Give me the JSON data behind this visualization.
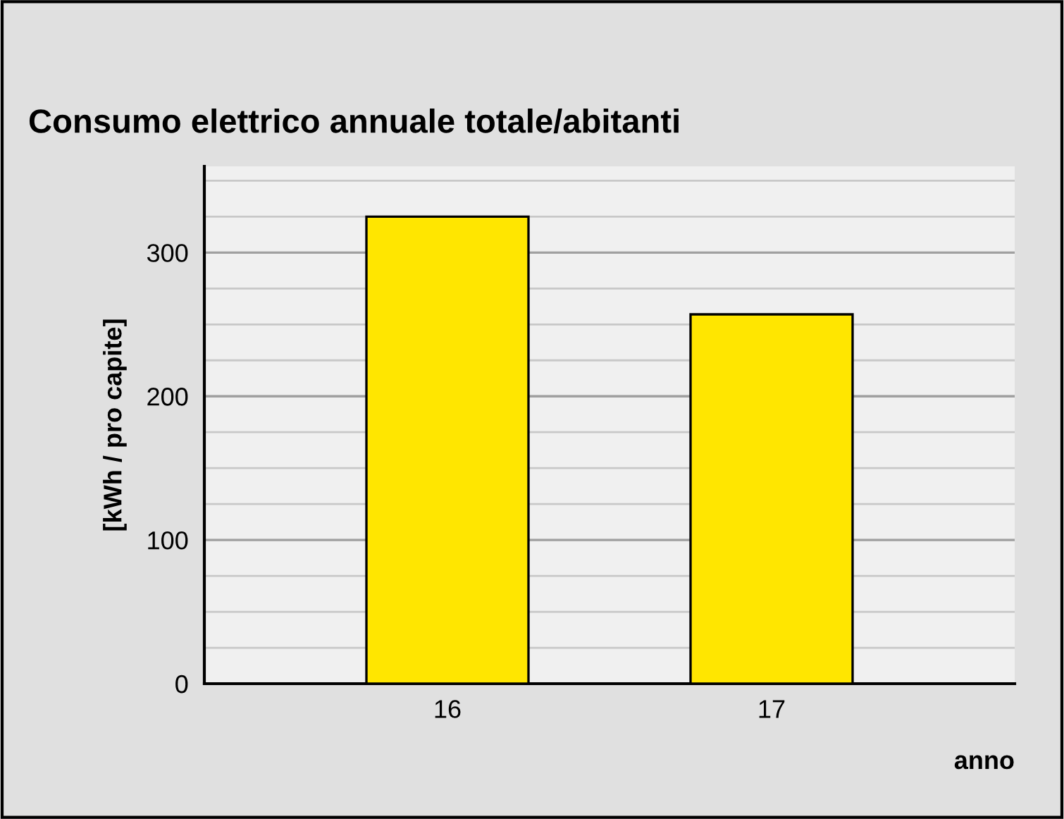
{
  "chart_data": {
    "type": "bar",
    "title": "Consumo elettrico annuale totale/abitanti",
    "xlabel": "anno",
    "ylabel": "[kWh / pro capite]",
    "categories": [
      "16",
      "17"
    ],
    "values": [
      325,
      257
    ],
    "color": "#ffe600",
    "ylim": [
      0,
      360
    ],
    "yticks": [
      0,
      {
        "value": 25,
        "label": null
      },
      {
        "value": 50,
        "label": null
      },
      {
        "value": 75,
        "label": null
      },
      100,
      {
        "value": 125,
        "label": null
      },
      {
        "value": 150,
        "label": null
      },
      {
        "value": 175,
        "label": null
      },
      200,
      {
        "value": 225,
        "label": null
      },
      {
        "value": 250,
        "label": null
      },
      {
        "value": 275,
        "label": null
      },
      300,
      {
        "value": 325,
        "label": null
      },
      {
        "value": 350,
        "label": null
      }
    ],
    "grid": "y",
    "legend": false
  }
}
